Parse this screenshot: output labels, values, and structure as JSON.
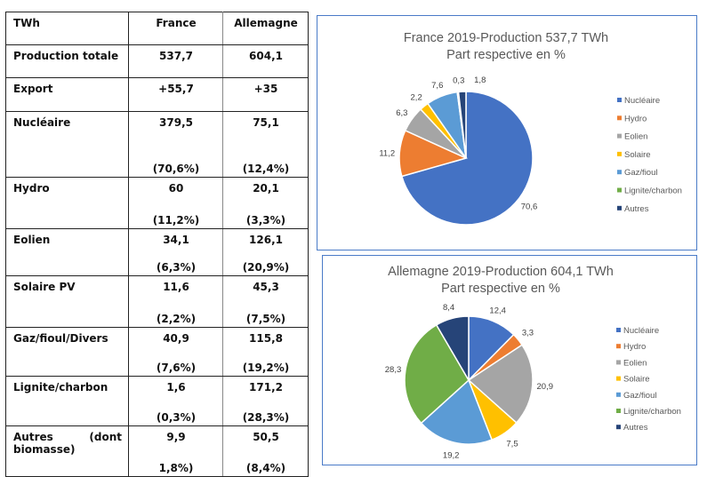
{
  "table": {
    "headers": [
      "TWh",
      "France",
      "Allemagne"
    ],
    "rows": [
      {
        "label": "Production totale",
        "france": "537,7",
        "france_pct": "",
        "allemagne": "604,1",
        "allemagne_pct": ""
      },
      {
        "label": "Export",
        "france": "+55,7",
        "france_pct": "",
        "allemagne": "+35",
        "allemagne_pct": ""
      },
      {
        "label": "Nucléaire",
        "france": "379,5",
        "france_pct": "(70,6%)",
        "allemagne": "75,1",
        "allemagne_pct": "(12,4%)"
      },
      {
        "label": "Hydro",
        "france": "60",
        "france_pct": "(11,2%)",
        "allemagne": "20,1",
        "allemagne_pct": "(3,3%)"
      },
      {
        "label": "Eolien",
        "france": "34,1",
        "france_pct": "(6,3%)",
        "allemagne": "126,1",
        "allemagne_pct": "(20,9%)"
      },
      {
        "label": "Solaire PV",
        "france": "11,6",
        "france_pct": "(2,2%)",
        "allemagne": "45,3",
        "allemagne_pct": "(7,5%)"
      },
      {
        "label": "Gaz/fioul/Divers",
        "france": "40,9",
        "france_pct": "(7,6%)",
        "allemagne": "115,8",
        "allemagne_pct": "(19,2%)"
      },
      {
        "label": "Lignite/charbon",
        "france": "1,6",
        "france_pct": "(0,3%)",
        "allemagne": "171,2",
        "allemagne_pct": "(28,3%)"
      },
      {
        "label": "Autres (dont biomasse)",
        "france": "9,9",
        "france_pct": "1,8%)",
        "allemagne": "50,5",
        "allemagne_pct": "(8,4%)"
      }
    ]
  },
  "chart_data": [
    {
      "type": "pie",
      "title": "France 2019-Production 537,7 TWh",
      "subtitle": "Part respective  en %",
      "categories": [
        "Nucléaire",
        "Hydro",
        "Eolien",
        "Solaire",
        "Gaz/fioul",
        "Lignite/charbon",
        "Autres"
      ],
      "values": [
        70.6,
        11.2,
        6.3,
        2.2,
        7.6,
        0.3,
        1.8
      ],
      "data_labels": [
        "70,6",
        "11,2",
        "6,3",
        "2,2",
        "7,6",
        "0,3",
        "1,8"
      ],
      "colors": [
        "#4472c4",
        "#ed7d31",
        "#a5a5a5",
        "#ffc000",
        "#5b9bd5",
        "#70ad47",
        "#264478"
      ],
      "legend": "right"
    },
    {
      "type": "pie",
      "title": "Allemagne 2019-Production 604,1 TWh",
      "subtitle": "Part respective en %",
      "categories": [
        "Nucléaire",
        "Hydro",
        "Eolien",
        "Solaire",
        "Gaz/fioul",
        "Lignite/charbon",
        "Autres"
      ],
      "values": [
        12.4,
        3.3,
        20.9,
        7.5,
        19.2,
        28.3,
        8.4
      ],
      "data_labels": [
        "12,4",
        "3,3",
        "20,9",
        "7,5",
        "19,2",
        "28,3",
        "8,4"
      ],
      "colors": [
        "#4472c4",
        "#ed7d31",
        "#a5a5a5",
        "#ffc000",
        "#5b9bd5",
        "#70ad47",
        "#264478"
      ],
      "legend": "right"
    }
  ]
}
